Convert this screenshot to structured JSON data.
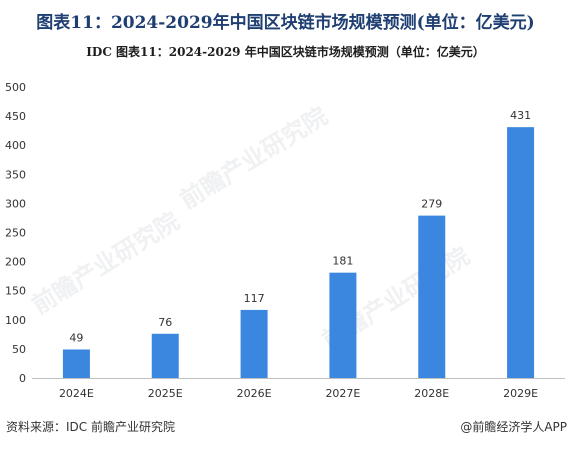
{
  "title": "图表11：2024-2029年中国区块链市场规模预测(单位：亿美元)",
  "subtitle": "IDC  图表11：2024-2029 年中国区块链市场规模预测（单位：亿美元）",
  "source": "资料来源：IDC 前瞻产业研究院",
  "brand": "@前瞻经济学人APP",
  "watermark": "前瞻产业研究院",
  "colors": {
    "bar": "#3b87e0",
    "title": "#1f3e72"
  },
  "chart_data": {
    "type": "bar",
    "categories": [
      "2024E",
      "2025E",
      "2026E",
      "2027E",
      "2028E",
      "2029E"
    ],
    "values": [
      49,
      76,
      117,
      181,
      279,
      431
    ],
    "ylim": [
      0,
      500
    ],
    "yticks": [
      0,
      50,
      100,
      150,
      200,
      250,
      300,
      350,
      400,
      450,
      500
    ],
    "grid": false,
    "xlabel": "",
    "ylabel": ""
  }
}
